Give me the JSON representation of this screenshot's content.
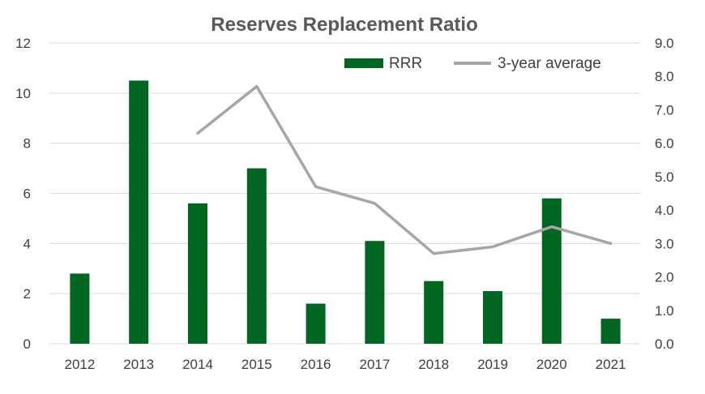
{
  "chart_data": {
    "type": "bar",
    "title": "Reserves Replacement Ratio",
    "categories": [
      "2012",
      "2013",
      "2014",
      "2015",
      "2016",
      "2017",
      "2018",
      "2019",
      "2020",
      "2021"
    ],
    "series": [
      {
        "name": "RRR",
        "type": "bar",
        "axis": "left",
        "color": "#006622",
        "values": [
          2.8,
          10.5,
          5.6,
          7.0,
          1.6,
          4.1,
          2.5,
          2.1,
          5.8,
          1.0
        ]
      },
      {
        "name": "3-year average",
        "type": "line",
        "axis": "right",
        "color": "#a6a6a6",
        "values": [
          null,
          null,
          6.3,
          7.7,
          4.7,
          4.2,
          2.7,
          2.9,
          3.5,
          3.0
        ]
      }
    ],
    "y_left": {
      "min": 0,
      "max": 12,
      "ticks": [
        "0",
        "2",
        "4",
        "6",
        "8",
        "10",
        "12"
      ]
    },
    "y_right": {
      "min": 0,
      "max": 9,
      "ticks": [
        "0.0",
        "1.0",
        "2.0",
        "3.0",
        "4.0",
        "5.0",
        "6.0",
        "7.0",
        "8.0",
        "9.0"
      ]
    },
    "grid": true,
    "legend_position": "top-right",
    "xlabel": "",
    "ylabel": ""
  }
}
